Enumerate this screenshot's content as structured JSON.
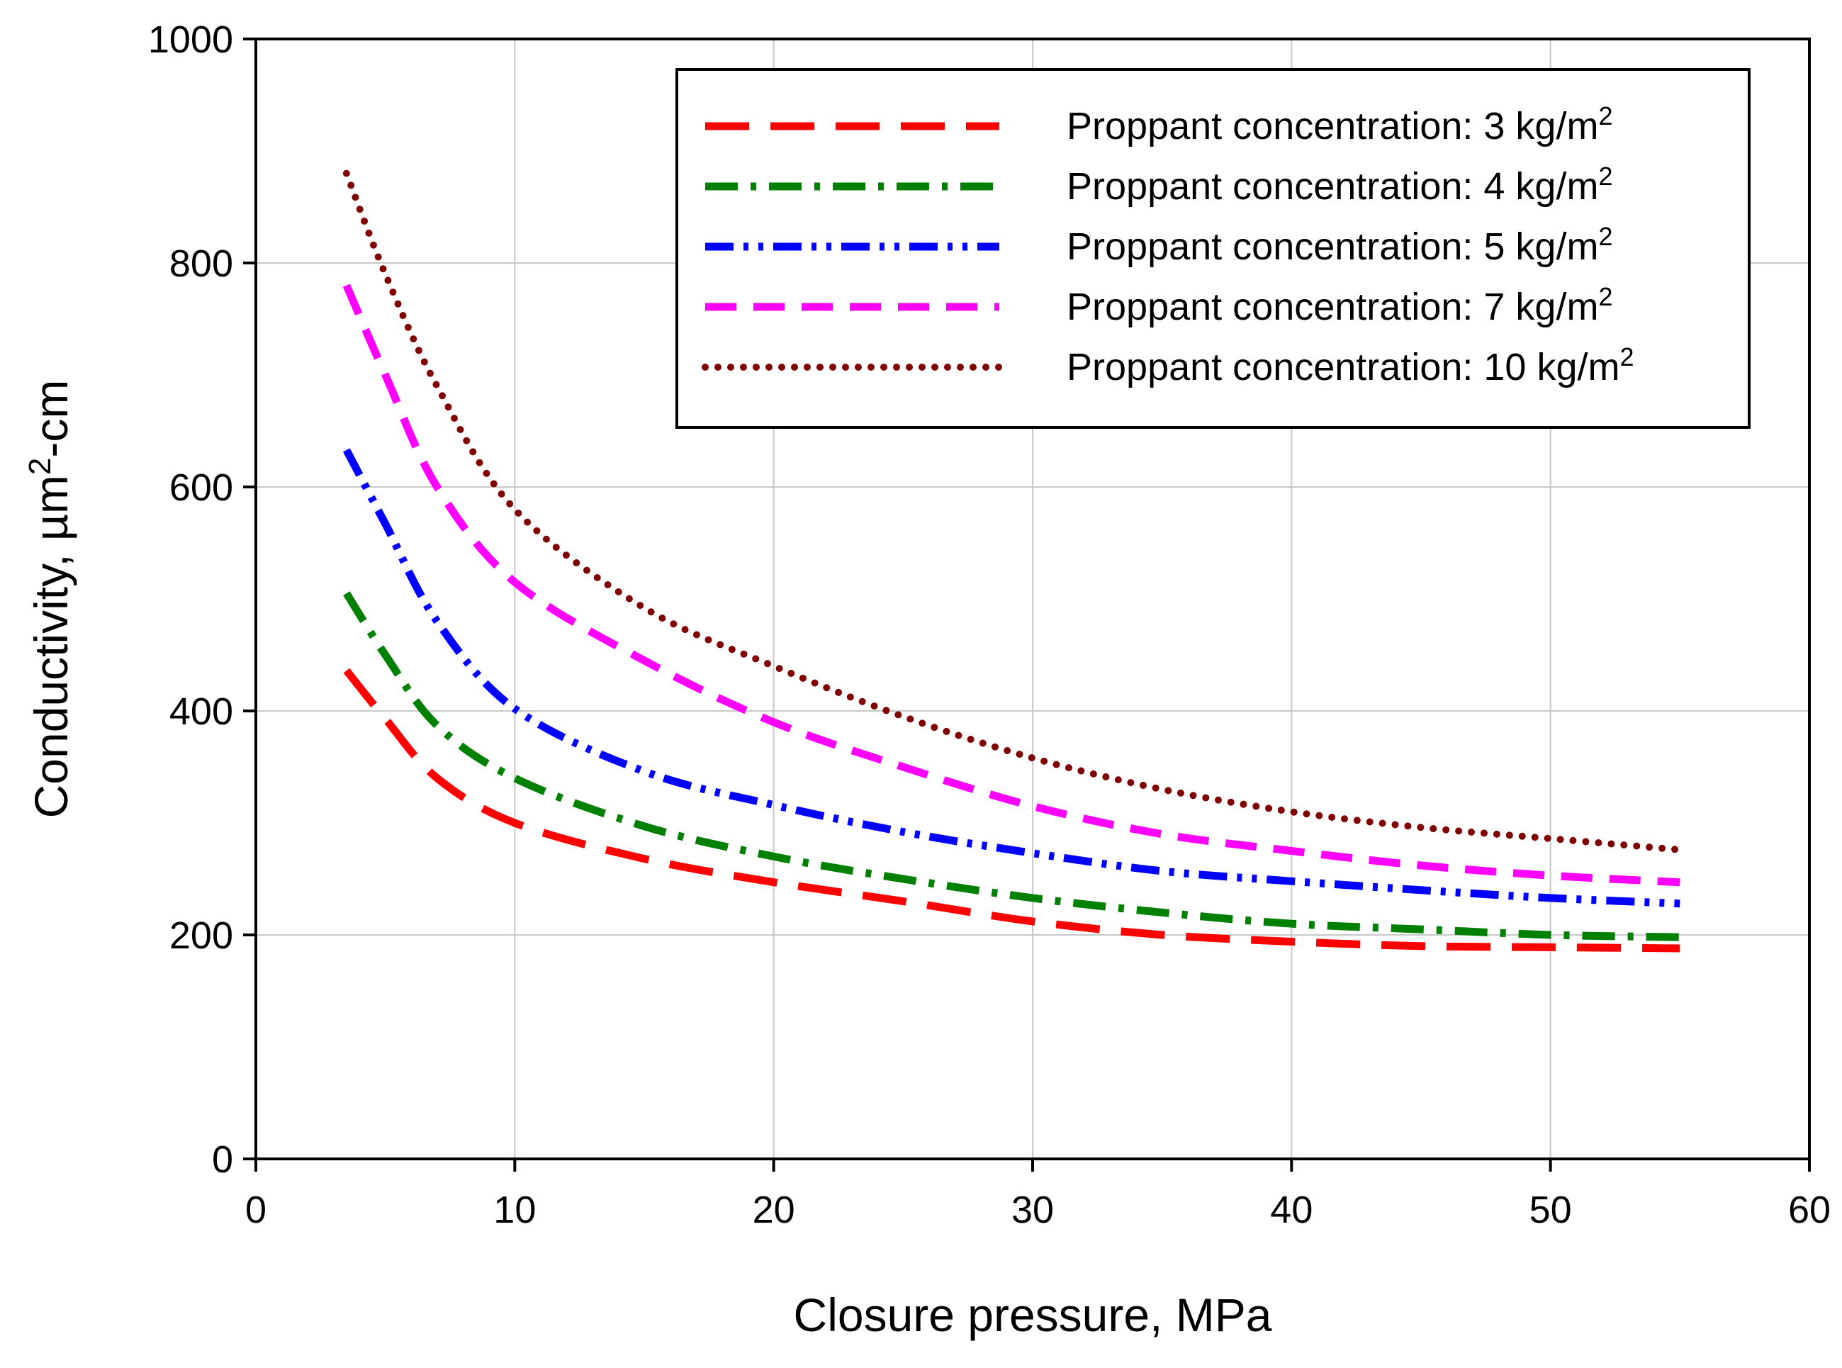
{
  "chart_data": {
    "type": "line",
    "title": "",
    "xlabel": "Closure pressure, MPa",
    "ylabel": {
      "prefix": "Conductivity, µm",
      "sup": "2",
      "suffix": "-cm"
    },
    "xlim": [
      0,
      60
    ],
    "ylim": [
      0,
      1000
    ],
    "xticks": [
      0,
      10,
      20,
      30,
      40,
      50,
      60
    ],
    "yticks": [
      0,
      200,
      400,
      600,
      800,
      1000
    ],
    "grid": true,
    "legend_position": "top-right",
    "x": [
      3.5,
      5,
      7,
      10,
      15,
      20,
      25,
      30,
      35,
      40,
      45,
      50,
      55
    ],
    "series": [
      {
        "name": "Proppant concentration: 3 kg/m",
        "sup": "2",
        "color": "#ff0000",
        "dash": "long-dash",
        "values": [
          436,
          393,
          340,
          300,
          268,
          247,
          230,
          212,
          200,
          194,
          190,
          189,
          188
        ]
      },
      {
        "name": "Proppant concentration: 4 kg/m",
        "sup": "2",
        "color": "#008000",
        "dash": "dash-dot",
        "values": [
          505,
          450,
          387,
          340,
          297,
          270,
          250,
          233,
          220,
          210,
          205,
          200,
          198
        ]
      },
      {
        "name": "Proppant concentration: 5 kg/m",
        "sup": "2",
        "color": "#0000ff",
        "dash": "dash-dot-dot",
        "values": [
          633,
          567,
          480,
          402,
          346,
          316,
          292,
          273,
          257,
          248,
          240,
          233,
          228
        ]
      },
      {
        "name": "Proppant concentration: 7 kg/m",
        "sup": "2",
        "color": "#ff00ff",
        "dash": "medium-dash",
        "values": [
          780,
          700,
          600,
          515,
          445,
          390,
          350,
          315,
          290,
          275,
          262,
          253,
          247
        ]
      },
      {
        "name": "Proppant concentration: 10 kg/m",
        "sup": "2",
        "color": "#800000",
        "dash": "dotted",
        "values": [
          880,
          790,
          690,
          580,
          492,
          440,
          395,
          358,
          330,
          310,
          296,
          286,
          276
        ]
      }
    ]
  }
}
